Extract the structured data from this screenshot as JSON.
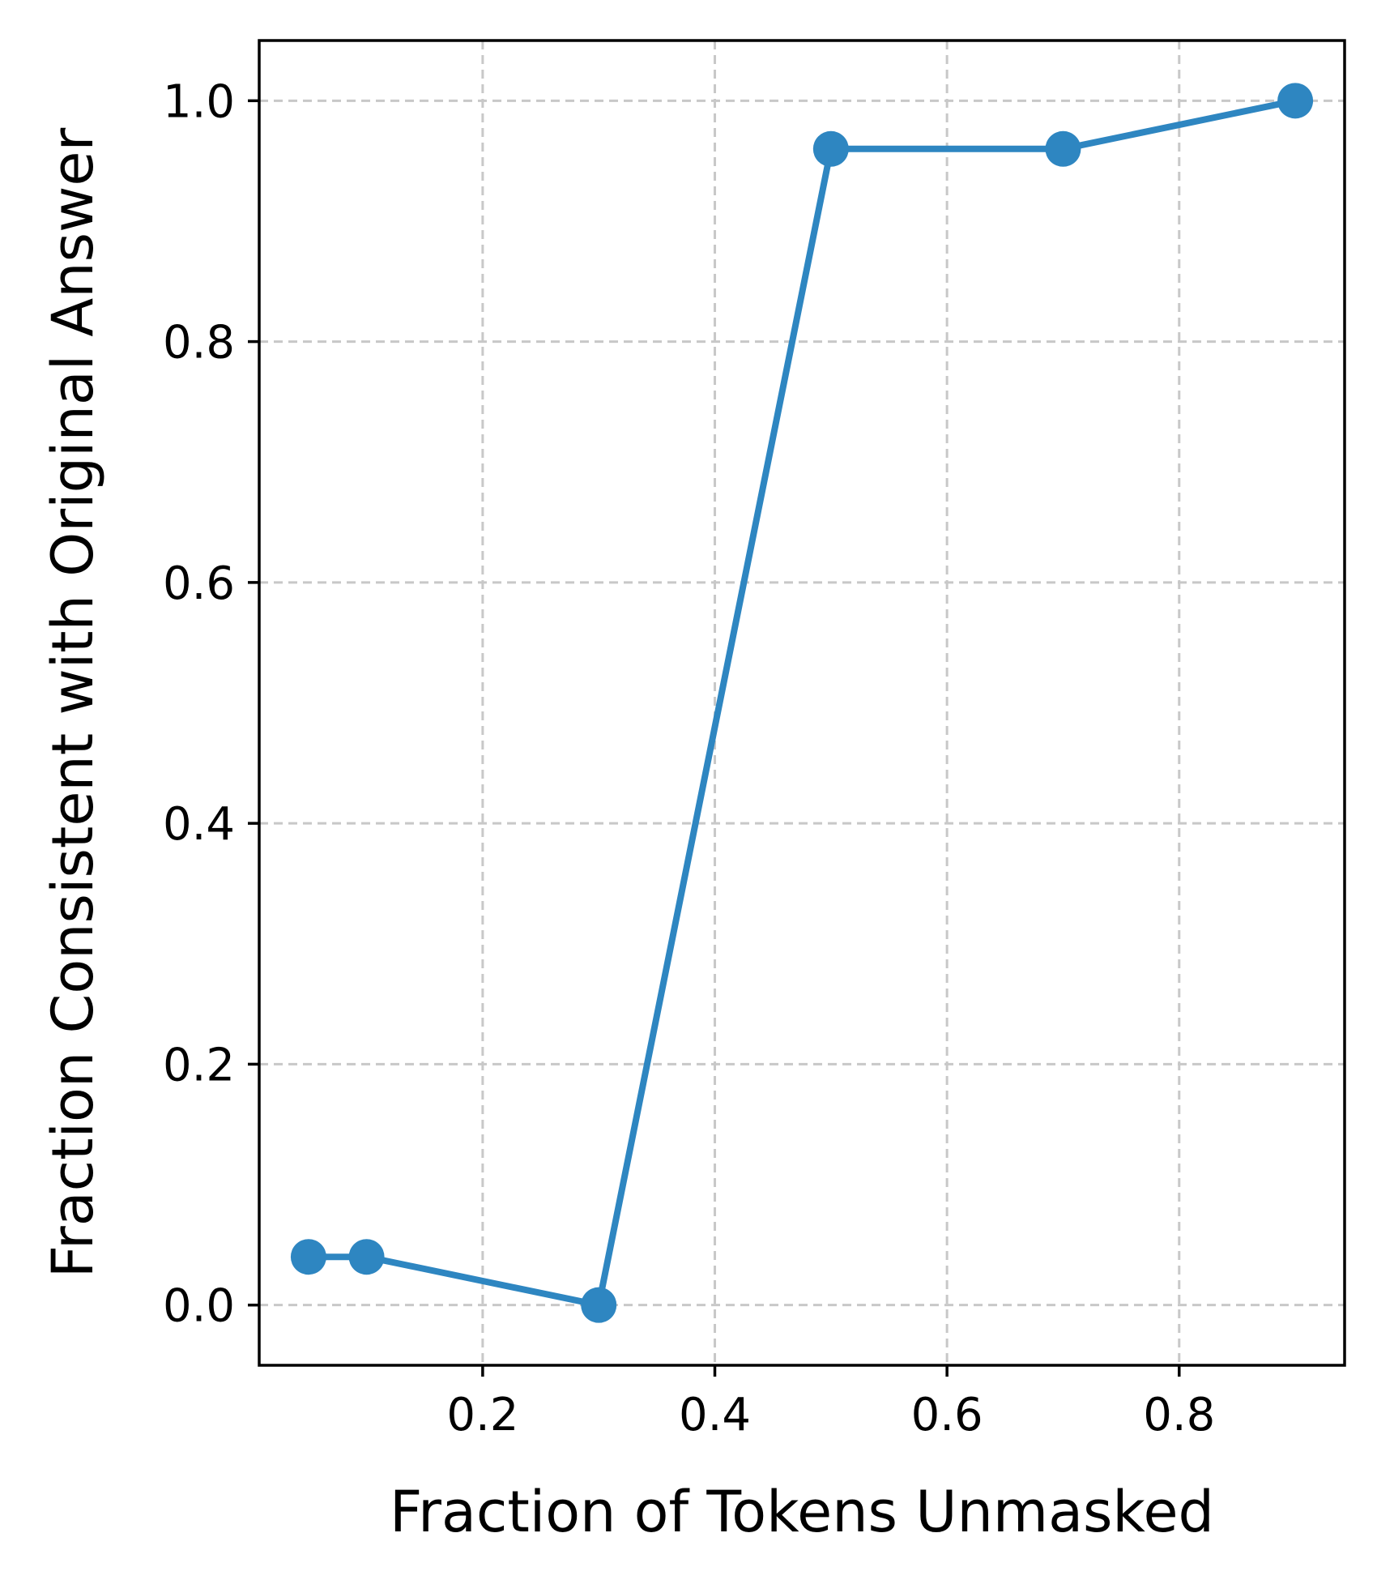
{
  "chart_data": {
    "type": "line",
    "title": "",
    "xlabel": "Fraction of Tokens Unmasked",
    "ylabel": "Fraction Consistent with Original Answer",
    "x": [
      0.05,
      0.1,
      0.3,
      0.5,
      0.7,
      0.9
    ],
    "series": [
      {
        "values": [
          0.04,
          0.04,
          0.0,
          0.96,
          0.96,
          1.0
        ],
        "color": "#2e86c1",
        "marker": "circle"
      }
    ],
    "xlim": [
      0.0075,
      0.9425
    ],
    "ylim": [
      -0.05,
      1.05
    ],
    "xticks": [
      0.2,
      0.4,
      0.6,
      0.8
    ],
    "xtick_labels": [
      "0.2",
      "0.4",
      "0.6",
      "0.8"
    ],
    "yticks": [
      0.0,
      0.2,
      0.4,
      0.6,
      0.8,
      1.0
    ],
    "ytick_labels": [
      "0.0",
      "0.2",
      "0.4",
      "0.6",
      "0.8",
      "1.0"
    ],
    "grid": true,
    "grid_style": "dashed",
    "legend": "none"
  }
}
